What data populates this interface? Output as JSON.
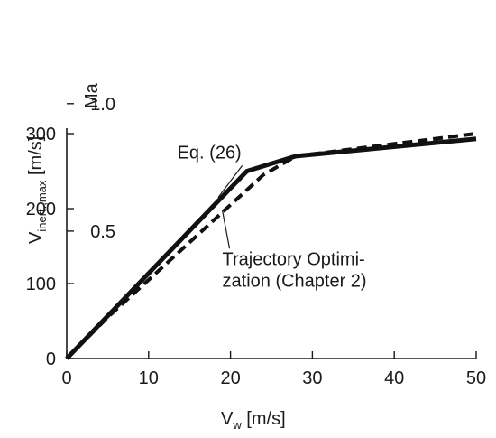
{
  "chart_data": {
    "type": "line",
    "xlabel": {
      "main": "V",
      "sub": "w",
      "unit": " [m/s]"
    },
    "ylabel": {
      "main": "V",
      "sub": "inert.,max",
      "unit": " [m/s]"
    },
    "secondary_label": "Ma",
    "xlim": [
      0,
      50
    ],
    "ylim": [
      0,
      300
    ],
    "x_ticks": [
      "0",
      "10",
      "20",
      "30",
      "40",
      "50"
    ],
    "y_ticks": [
      "0",
      "100",
      "200",
      "300"
    ],
    "ma_ticks": [
      {
        "label": "0.5",
        "value": 0.5
      },
      {
        "label": "1.0",
        "value": 1.0
      }
    ],
    "ma_unit_speed": 340,
    "grid": false,
    "series": [
      {
        "style": "solid",
        "x": [
          0,
          22,
          28,
          50
        ],
        "y": [
          0,
          250,
          270,
          293
        ]
      },
      {
        "style": "dashed",
        "x": [
          0,
          5,
          24,
          28,
          50
        ],
        "y": [
          0,
          55,
          245,
          270,
          300
        ]
      }
    ],
    "annotations": [
      {
        "lines": [
          "Eq. (26)"
        ],
        "x": 13.5,
        "y": 267,
        "target_x": 18.5,
        "target_y": 215
      },
      {
        "lines": [
          "Trajectory Optimi-",
          "zation (Chapter 2)"
        ],
        "x": 19,
        "y": 125,
        "target_x": 19,
        "target_y": 198
      }
    ]
  }
}
